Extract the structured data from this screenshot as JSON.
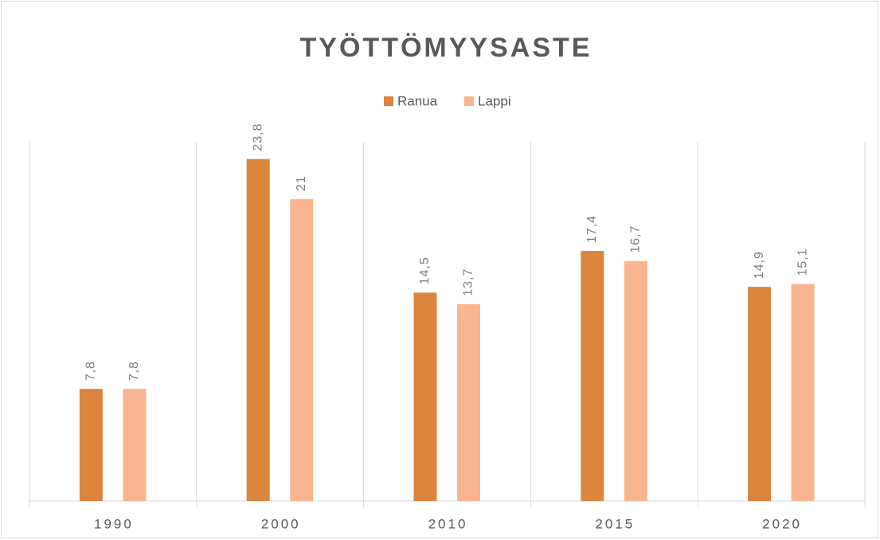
{
  "chart_data": {
    "type": "bar",
    "title": "TYÖTTÖMYYSASTE",
    "categories": [
      "1990",
      "2000",
      "2010",
      "2015",
      "2020"
    ],
    "series": [
      {
        "name": "Ranua",
        "color": "#db843d",
        "values": [
          7.8,
          23.8,
          14.5,
          17.4,
          14.9
        ],
        "value_labels": [
          "7,8",
          "23,8",
          "14,5",
          "17,4",
          "14,9"
        ]
      },
      {
        "name": "Lappi",
        "color": "#f9b58f",
        "values": [
          7.8,
          21,
          13.7,
          16.7,
          15.1
        ],
        "value_labels": [
          "7,8",
          "21",
          "13,7",
          "16,7",
          "15,1"
        ]
      }
    ],
    "ylim": [
      0,
      25
    ],
    "legend": "top"
  }
}
